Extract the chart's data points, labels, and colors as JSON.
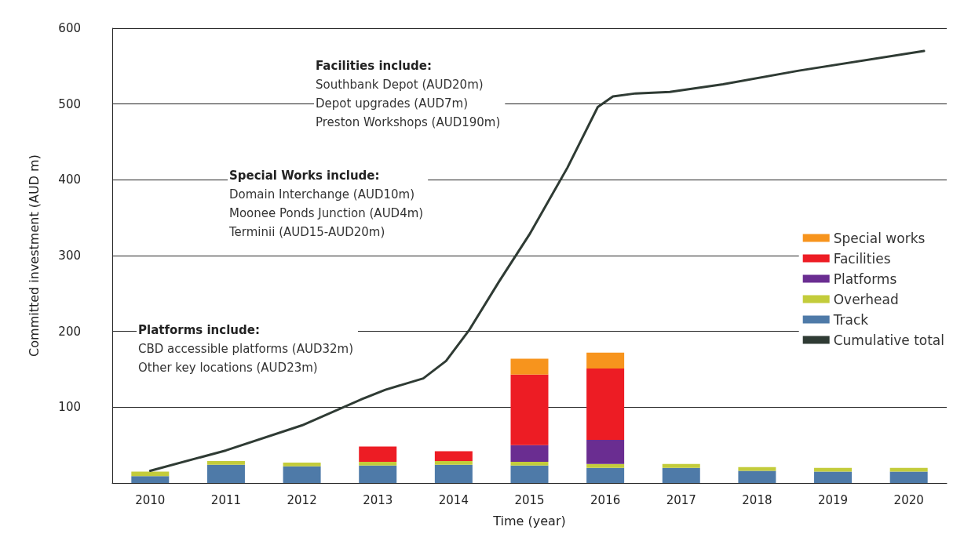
{
  "chart_data": {
    "type": "bar",
    "stacked": true,
    "xlabel": "Time (year)",
    "ylabel": "Committed investment (AUD m)",
    "x": [
      2010,
      2011,
      2012,
      2013,
      2014,
      2015,
      2016,
      2017,
      2018,
      2019,
      2020
    ],
    "xlim": [
      2009.5,
      2020.5
    ],
    "xticks": [
      2010,
      2011,
      2012,
      2013,
      2014,
      2015,
      2016,
      2017,
      2018,
      2019,
      2020
    ],
    "ylim": [
      0,
      600
    ],
    "yticks": [
      {
        "value": 0,
        "label": null
      },
      100,
      200,
      300,
      400,
      500,
      600
    ],
    "grid": "y",
    "legend": "right",
    "series": [
      {
        "name": "Track",
        "color": "#4e7aa8",
        "values": [
          9,
          24,
          22,
          23,
          24,
          23,
          20,
          20,
          16,
          15,
          15
        ]
      },
      {
        "name": "Overhead",
        "color": "#c3cc3b",
        "values": [
          6,
          5,
          5,
          5,
          5,
          5,
          5,
          5,
          5,
          5,
          5
        ]
      },
      {
        "name": "Platforms",
        "color": "#6a2d91",
        "values": [
          0,
          0,
          0,
          0,
          0,
          22,
          32,
          0,
          0,
          0,
          0
        ]
      },
      {
        "name": "Facilities",
        "color": "#ed1c24",
        "values": [
          0,
          0,
          0,
          20,
          13,
          93,
          94,
          0,
          0,
          0,
          0
        ]
      },
      {
        "name": "Special works",
        "color": "#f7941d",
        "values": [
          0,
          0,
          0,
          0,
          0,
          21,
          21,
          0,
          0,
          0,
          0
        ]
      },
      {
        "name": "Cumulative total",
        "type": "line",
        "color": "#2f3b34",
        "x": [
          2010,
          2011,
          2012,
          2012.8,
          2013.1,
          2013.6,
          2013.9,
          2014.2,
          2014.6,
          2015,
          2015.5,
          2015.9,
          2016.1,
          2016.4,
          2016.85,
          2017.55,
          2018.55,
          2020.2
        ],
        "values": [
          16,
          43,
          76,
          111,
          123,
          138,
          161,
          201,
          266,
          328,
          416,
          496,
          510,
          514,
          516,
          526,
          544,
          570
        ]
      }
    ],
    "annotations": [
      "Facilities include:\nSouthbank Depot (AUD20m)\nDepot upgrades (AUD7m)\nPreston Workshops (AUD190m)",
      "Special Works include:\nDomain Interchange (AUD10m)\nMoonee Ponds Junction (AUD4m)\nTerminii (AUD15-AUD20m)",
      "Platforms include:\nCBD accessible platforms (AUD32m)\nOther key locations (AUD23m)"
    ]
  }
}
